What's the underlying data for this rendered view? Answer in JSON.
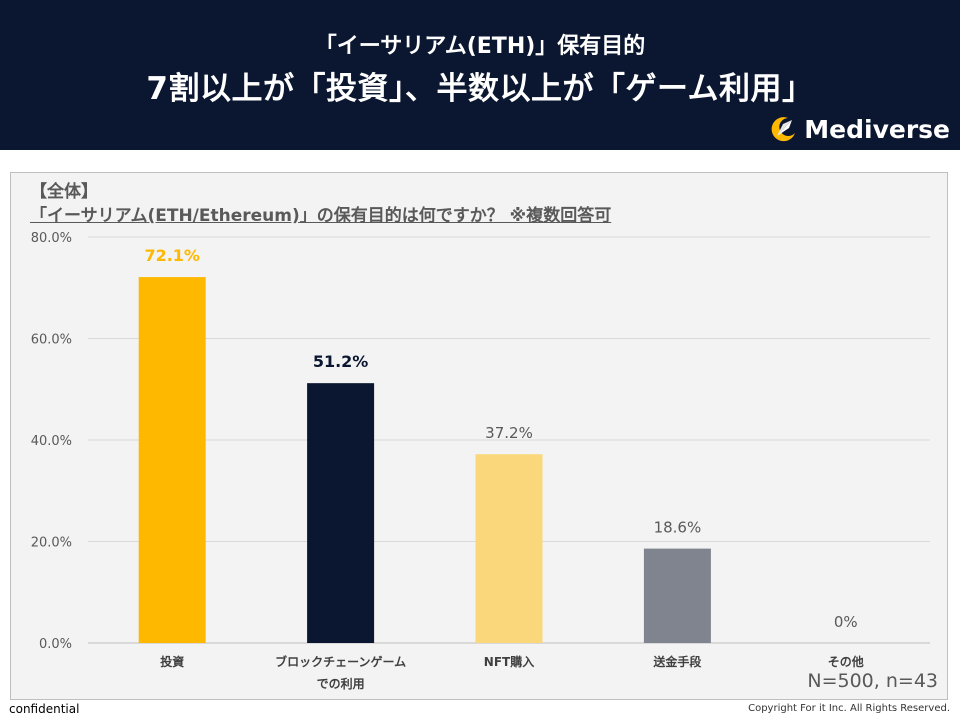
{
  "header": {
    "subtitle": "「イーサリアム(ETH)」保有目的",
    "title": "7割以上が「投資」、半数以上が「ゲーム利用」",
    "logo_text": "Mediverse"
  },
  "question": {
    "segment": "【全体】",
    "text": "「イーサリアム(ETH/Ethereum)」の保有目的は何ですか？ ※複数回答可"
  },
  "sample_note": "N=500, n=43",
  "footer": {
    "left": "confidential",
    "right": "Copyright For it Inc. All Rights Reserved."
  },
  "colors": {
    "header_bg": "#0b1730",
    "accent": "#ffb800"
  },
  "chart_data": {
    "type": "bar",
    "categories": [
      "投資",
      "ブロックチェーンゲームでの利用",
      "NFT購入",
      "送金手段",
      "その他"
    ],
    "category_lines": [
      [
        "投資"
      ],
      [
        "ブロックチェーンゲーム",
        "での利用"
      ],
      [
        "NFT購入"
      ],
      [
        "送金手段"
      ],
      [
        "その他"
      ]
    ],
    "values": [
      72.1,
      51.2,
      37.2,
      18.6,
      0
    ],
    "value_labels": [
      "72.1%",
      "51.2%",
      "37.2%",
      "18.6%",
      "0%"
    ],
    "bar_colors": [
      "#ffb800",
      "#0b1730",
      "#fad77b",
      "#7f848e",
      "#f3f3f3"
    ],
    "label_colors": [
      "#ffb800",
      "#0b1730",
      "#595959",
      "#595959",
      "#595959"
    ],
    "label_bold": [
      true,
      true,
      false,
      false,
      false
    ],
    "ylim": [
      0,
      80
    ],
    "yticks": [
      0,
      20,
      40,
      60,
      80
    ],
    "ytick_labels": [
      "0.0%",
      "20.0%",
      "40.0%",
      "60.0%",
      "80.0%"
    ],
    "grid": true,
    "xlabel": "",
    "ylabel": ""
  }
}
